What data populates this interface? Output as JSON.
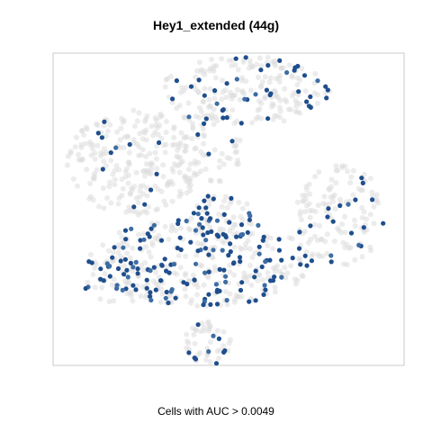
{
  "chart_data": {
    "type": "scatter",
    "title": "Hey1_extended (44g)",
    "xlabel": "Cells with AUC > 0.0049",
    "ylabel": "",
    "grid": false,
    "colors": {
      "background_points": "#dcdcdc",
      "highlighted_points": "#1f4e8c",
      "frame": "#c8c8c8"
    },
    "clusters": [
      {
        "cx": 0.55,
        "cy": 0.88,
        "rx": 0.24,
        "ry": 0.11,
        "n_bg": 170,
        "n_hi": 40
      },
      {
        "cx": 0.23,
        "cy": 0.65,
        "rx": 0.19,
        "ry": 0.17,
        "n_bg": 230,
        "n_hi": 12
      },
      {
        "cx": 0.44,
        "cy": 0.7,
        "rx": 0.1,
        "ry": 0.13,
        "n_bg": 60,
        "n_hi": 6
      },
      {
        "cx": 0.42,
        "cy": 0.33,
        "rx": 0.32,
        "ry": 0.14,
        "n_bg": 230,
        "n_hi": 130
      },
      {
        "cx": 0.48,
        "cy": 0.47,
        "rx": 0.09,
        "ry": 0.08,
        "n_bg": 40,
        "n_hi": 25
      },
      {
        "cx": 0.82,
        "cy": 0.48,
        "rx": 0.13,
        "ry": 0.16,
        "n_bg": 120,
        "n_hi": 18
      },
      {
        "cx": 0.2,
        "cy": 0.27,
        "rx": 0.12,
        "ry": 0.07,
        "n_bg": 40,
        "n_hi": 20
      },
      {
        "cx": 0.44,
        "cy": 0.07,
        "rx": 0.07,
        "ry": 0.07,
        "n_bg": 40,
        "n_hi": 10
      }
    ]
  }
}
